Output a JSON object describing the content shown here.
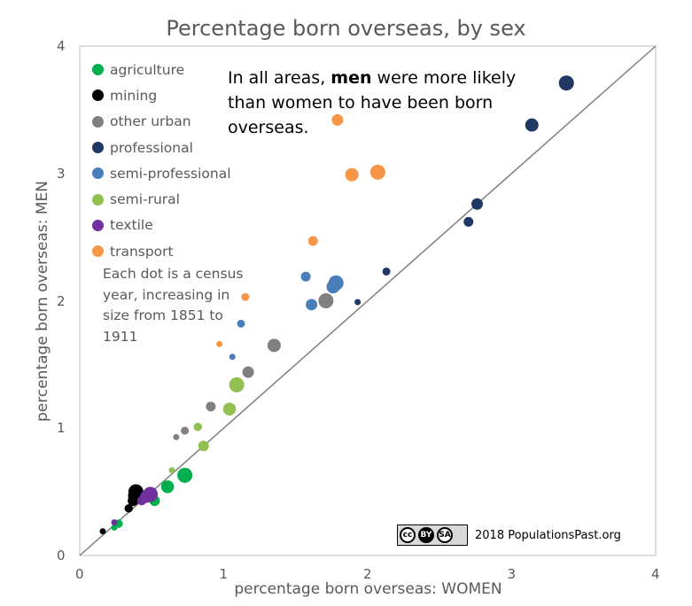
{
  "chart_data": {
    "type": "scatter",
    "title": "Percentage born overseas, by sex",
    "xlabel": "percentage born overseas: WOMEN",
    "ylabel": "percentage born overseas: MEN",
    "xlim": [
      0,
      4
    ],
    "ylim": [
      0,
      4
    ],
    "x_ticks": [
      "0",
      "1",
      "2",
      "3",
      "4"
    ],
    "y_ticks": [
      "0",
      "1",
      "2",
      "3",
      "4"
    ],
    "grid": false,
    "legend_position": "top-left",
    "reference_line": "y = x",
    "series": [
      {
        "name": "agriculture",
        "color": "#00b050",
        "points": [
          [
            0.24,
            0.22
          ],
          [
            0.27,
            0.25
          ],
          [
            0.52,
            0.43
          ],
          [
            0.61,
            0.54
          ],
          [
            0.73,
            0.63
          ]
        ]
      },
      {
        "name": "mining",
        "color": "#000000",
        "points": [
          [
            0.16,
            0.19
          ],
          [
            0.34,
            0.37
          ],
          [
            0.37,
            0.43
          ],
          [
            0.38,
            0.47
          ],
          [
            0.39,
            0.5
          ]
        ]
      },
      {
        "name": "other urban",
        "color": "#808080",
        "points": [
          [
            0.67,
            0.93
          ],
          [
            0.73,
            0.98
          ],
          [
            0.91,
            1.17
          ],
          [
            1.17,
            1.44
          ],
          [
            1.35,
            1.65
          ],
          [
            1.71,
            2.0
          ]
        ]
      },
      {
        "name": "professional",
        "color": "#1f3864",
        "points": [
          [
            1.93,
            1.99
          ],
          [
            2.13,
            2.23
          ],
          [
            2.7,
            2.62
          ],
          [
            2.76,
            2.76
          ],
          [
            3.14,
            3.38
          ],
          [
            3.38,
            3.71
          ]
        ]
      },
      {
        "name": "semi-professional",
        "color": "#4a7ebb",
        "points": [
          [
            1.06,
            1.56
          ],
          [
            1.12,
            1.82
          ],
          [
            1.57,
            2.19
          ],
          [
            1.61,
            1.97
          ],
          [
            1.76,
            2.11
          ],
          [
            1.78,
            2.14
          ]
        ]
      },
      {
        "name": "semi-rural",
        "color": "#92c050",
        "points": [
          [
            0.64,
            0.67
          ],
          [
            0.82,
            1.01
          ],
          [
            0.86,
            0.86
          ],
          [
            1.04,
            1.15
          ],
          [
            1.09,
            1.34
          ]
        ]
      },
      {
        "name": "textile",
        "color": "#7030a0",
        "points": [
          [
            0.24,
            0.26
          ],
          [
            0.43,
            0.43
          ],
          [
            0.46,
            0.46
          ],
          [
            0.49,
            0.48
          ]
        ]
      },
      {
        "name": "transport",
        "color": "#f79646",
        "points": [
          [
            0.97,
            1.66
          ],
          [
            1.15,
            2.03
          ],
          [
            1.62,
            2.47
          ],
          [
            1.79,
            3.42
          ],
          [
            1.89,
            2.99
          ],
          [
            2.07,
            3.01
          ]
        ]
      }
    ]
  },
  "annotation": {
    "line1_pre": "In all areas, ",
    "line1_bold": "men",
    "line1_post": " were more likely",
    "line2": "than women to have been born",
    "line3": "overseas."
  },
  "note": "Each dot is a census year, increasing in size from  1851 to 1911",
  "credit": {
    "badge_cc": "cc",
    "badge_by": "BY",
    "badge_sa": "SA",
    "text": "2018 PopulationsPast.org"
  }
}
